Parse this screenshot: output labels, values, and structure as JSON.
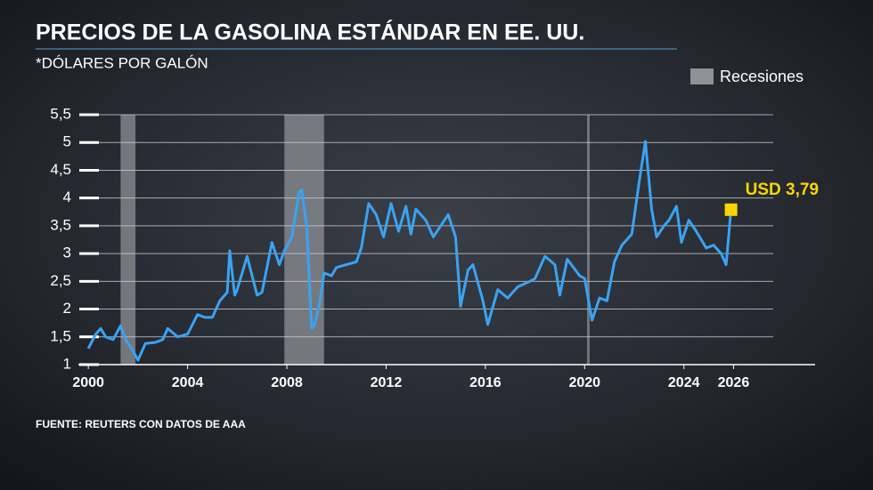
{
  "chart_data": {
    "type": "line",
    "title": "PRECIOS DE LA GASOLINA ESTÁNDAR EN EE. UU.",
    "subtitle": "*DÓLARES POR GALÓN",
    "source": "FUENTE: REUTERS CON DATOS DE AAA",
    "annotation": "USD 3,79",
    "marker_color": "#ffd400",
    "x": [
      2000.0,
      2000.3,
      2000.5,
      2000.7,
      2001.0,
      2001.3,
      2001.5,
      2001.8,
      2002.0,
      2002.3,
      2002.7,
      2003.0,
      2003.2,
      2003.6,
      2004.0,
      2004.4,
      2004.7,
      2005.0,
      2005.3,
      2005.6,
      2005.7,
      2005.9,
      2006.0,
      2006.4,
      2006.8,
      2007.0,
      2007.4,
      2007.7,
      2007.9,
      2008.2,
      2008.5,
      2008.6,
      2008.8,
      2009.0,
      2009.1,
      2009.3,
      2009.5,
      2009.8,
      2010.0,
      2010.4,
      2010.8,
      2011.0,
      2011.3,
      2011.6,
      2011.9,
      2012.2,
      2012.5,
      2012.8,
      2013.0,
      2013.2,
      2013.6,
      2013.9,
      2014.2,
      2014.5,
      2014.8,
      2015.0,
      2015.3,
      2015.5,
      2015.9,
      2016.1,
      2016.5,
      2016.9,
      2017.3,
      2017.8,
      2018.0,
      2018.4,
      2018.8,
      2019.0,
      2019.3,
      2019.8,
      2020.0,
      2020.3,
      2020.6,
      2020.9,
      2021.2,
      2021.5,
      2021.9,
      2022.2,
      2022.45,
      2022.7,
      2022.9,
      2023.2,
      2023.4,
      2023.7,
      2023.9,
      2024.2,
      2024.5,
      2024.9,
      2025.2,
      2025.5,
      2025.7,
      2025.9
    ],
    "series": [
      {
        "name": "Gasolina estándar",
        "color": "#3aa3f2",
        "values": [
          1.29,
          1.55,
          1.65,
          1.5,
          1.45,
          1.7,
          1.45,
          1.25,
          1.08,
          1.38,
          1.4,
          1.45,
          1.65,
          1.5,
          1.55,
          1.9,
          1.85,
          1.85,
          2.15,
          2.3,
          3.05,
          2.25,
          2.35,
          2.95,
          2.25,
          2.3,
          3.2,
          2.8,
          3.05,
          3.3,
          4.11,
          4.15,
          3.5,
          1.65,
          1.7,
          2.05,
          2.65,
          2.6,
          2.75,
          2.8,
          2.85,
          3.1,
          3.9,
          3.7,
          3.3,
          3.9,
          3.4,
          3.85,
          3.35,
          3.8,
          3.6,
          3.3,
          3.5,
          3.7,
          3.3,
          2.05,
          2.7,
          2.8,
          2.15,
          1.72,
          2.35,
          2.2,
          2.4,
          2.5,
          2.55,
          2.95,
          2.8,
          2.25,
          2.9,
          2.6,
          2.55,
          1.8,
          2.2,
          2.15,
          2.85,
          3.15,
          3.35,
          4.3,
          5.02,
          3.8,
          3.3,
          3.5,
          3.6,
          3.85,
          3.2,
          3.6,
          3.4,
          3.1,
          3.15,
          3.0,
          2.8,
          3.79
        ]
      }
    ],
    "recessions": {
      "name": "Recesiones",
      "color": "#8e9297",
      "ranges": [
        [
          2001.3,
          2001.9
        ],
        [
          2007.9,
          2009.5
        ],
        [
          2020.1,
          2020.2
        ]
      ]
    },
    "xlim": [
      1999.6,
      2027.6
    ],
    "xticks": [
      2000,
      2004,
      2008,
      2012,
      2016,
      2020,
      2024,
      2026
    ],
    "ylim": [
      1,
      5.5
    ],
    "yticks": [
      1,
      {
        "value": 1.5,
        "label": "1,5"
      },
      2,
      {
        "value": 2.5,
        "label": "2,5"
      },
      3,
      {
        "value": 3.5,
        "label": "3,5"
      },
      4,
      {
        "value": 4.5,
        "label": "4,5"
      },
      5,
      {
        "value": 5.5,
        "label": "5,5"
      }
    ],
    "grid": true
  }
}
